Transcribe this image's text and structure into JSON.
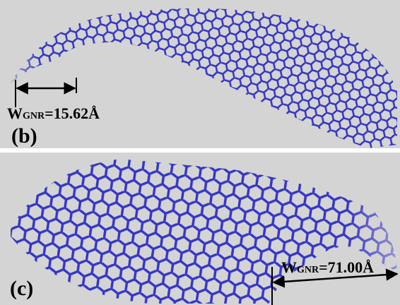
{
  "panels": [
    {
      "label": "(b)",
      "width_symbol": "W",
      "width_subscript": "GNR",
      "width_value": "=15.62Å"
    },
    {
      "label": "(c)",
      "width_symbol": "W",
      "width_subscript": "GNR",
      "width_value": "=71.00Å"
    }
  ]
}
